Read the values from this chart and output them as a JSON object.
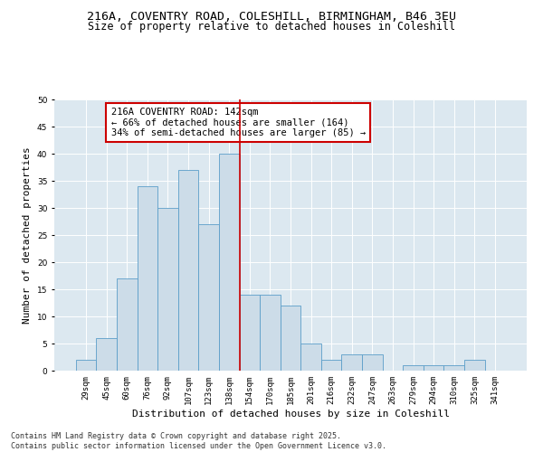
{
  "title1": "216A, COVENTRY ROAD, COLESHILL, BIRMINGHAM, B46 3EU",
  "title2": "Size of property relative to detached houses in Coleshill",
  "xlabel": "Distribution of detached houses by size in Coleshill",
  "ylabel": "Number of detached properties",
  "bar_labels": [
    "29sqm",
    "45sqm",
    "60sqm",
    "76sqm",
    "92sqm",
    "107sqm",
    "123sqm",
    "138sqm",
    "154sqm",
    "170sqm",
    "185sqm",
    "201sqm",
    "216sqm",
    "232sqm",
    "247sqm",
    "263sqm",
    "279sqm",
    "294sqm",
    "310sqm",
    "325sqm",
    "341sqm"
  ],
  "bar_values": [
    2,
    6,
    17,
    34,
    30,
    37,
    27,
    40,
    14,
    14,
    12,
    5,
    2,
    3,
    3,
    0,
    1,
    1,
    1,
    2,
    0
  ],
  "bar_color": "#ccdce8",
  "bar_edge_color": "#5b9ec9",
  "vline_x": 7.5,
  "vline_color": "#cc0000",
  "annotation_text": "216A COVENTRY ROAD: 142sqm\n← 66% of detached houses are smaller (164)\n34% of semi-detached houses are larger (85) →",
  "annotation_box_color": "#ffffff",
  "annotation_box_edge": "#cc0000",
  "ylim": [
    0,
    50
  ],
  "yticks": [
    0,
    5,
    10,
    15,
    20,
    25,
    30,
    35,
    40,
    45,
    50
  ],
  "bg_color": "#dce8f0",
  "fig_bg_color": "#ffffff",
  "footer": "Contains HM Land Registry data © Crown copyright and database right 2025.\nContains public sector information licensed under the Open Government Licence v3.0.",
  "title_fontsize": 9.5,
  "subtitle_fontsize": 8.5,
  "axis_label_fontsize": 8,
  "tick_fontsize": 6.5,
  "annotation_fontsize": 7.5,
  "footer_fontsize": 6
}
